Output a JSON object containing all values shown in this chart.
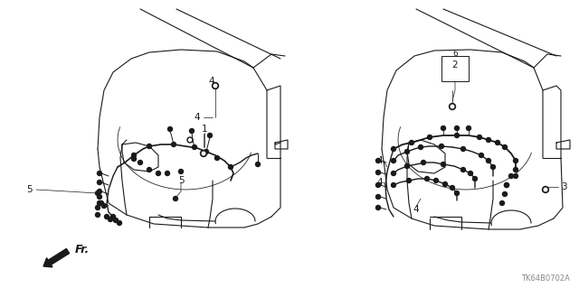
{
  "fig_width": 6.4,
  "fig_height": 3.19,
  "dpi": 100,
  "background_color": "#ffffff",
  "line_color": "#1a1a1a",
  "label_fontsize": 7.5,
  "diagram_id_fontsize": 6,
  "fr_fontsize": 9,
  "diagram_id": "TK64B0702A",
  "fr_label": "Fr.",
  "gray": "#888888",
  "left_car": {
    "ox": 0.03,
    "oy": 0.07,
    "sc": 0.43
  },
  "right_car": {
    "ox": 0.53,
    "oy": 0.07,
    "sc": 0.43
  }
}
